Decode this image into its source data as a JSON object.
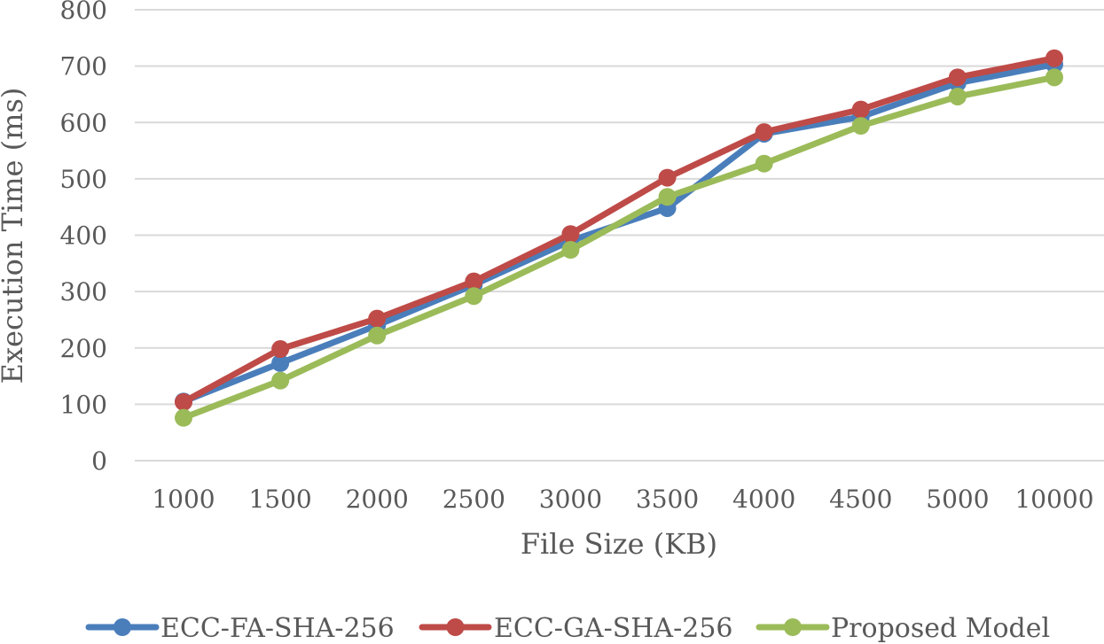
{
  "chart_data": {
    "type": "line",
    "title": "",
    "xlabel": "File Size (KB)",
    "ylabel": "Execution Time (ms)",
    "categories": [
      "1000",
      "1500",
      "2000",
      "2500",
      "3000",
      "3500",
      "4000",
      "4500",
      "5000",
      "10000"
    ],
    "ylim": [
      0,
      800
    ],
    "yticks": [
      0,
      100,
      200,
      300,
      400,
      500,
      600,
      700,
      800
    ],
    "grid": true,
    "legend_position": "bottom",
    "series": [
      {
        "name": "ECC-FA-SHA-256",
        "color": "#4a7ebb",
        "values": [
          105,
          173,
          240,
          312,
          390,
          448,
          580,
          610,
          670,
          703
        ]
      },
      {
        "name": "ECC-GA-SHA-256",
        "color": "#be4b48",
        "values": [
          104,
          198,
          252,
          318,
          402,
          502,
          583,
          623,
          680,
          714
        ]
      },
      {
        "name": "Proposed Model",
        "color": "#9bbb59",
        "values": [
          76,
          142,
          222,
          292,
          374,
          468,
          527,
          594,
          646,
          680
        ]
      }
    ]
  }
}
